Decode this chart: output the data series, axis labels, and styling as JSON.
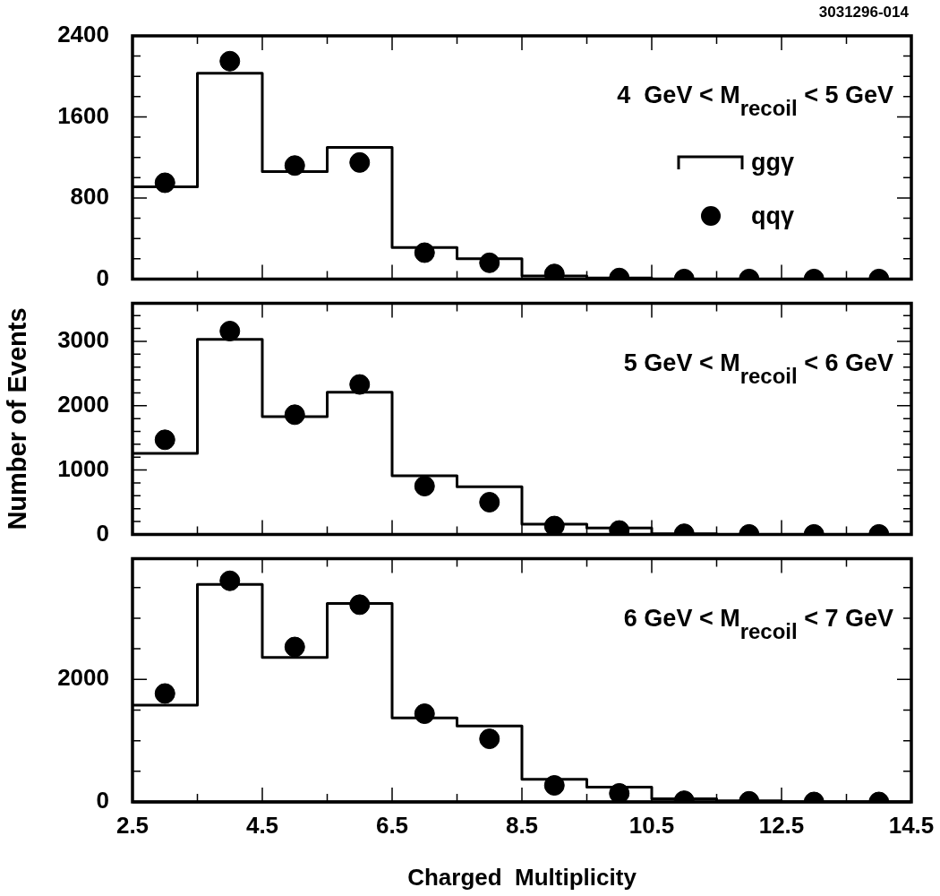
{
  "chart_data": [
    {
      "type": "histogram",
      "title": "4  GeV < M$_{recoil}$ < 5 GeV",
      "annotations": [
        "3031296-014"
      ],
      "legend": "right",
      "marker": "circle",
      "tick_labels": "y",
      "bins": [
        2.5,
        3.5,
        4.5,
        5.5,
        6.5,
        7.5,
        8.5,
        9.5,
        10.5,
        11.5,
        12.5,
        13.5,
        14.5
      ],
      "xlim": [
        2.5,
        14.5
      ],
      "xticks": [
        {
          "value": 2.5,
          "label": null
        },
        {
          "value": 3.5,
          "label": null
        },
        {
          "value": 4.5,
          "label": null
        },
        {
          "value": 5.5,
          "label": null
        },
        {
          "value": 6.5,
          "label": null
        },
        {
          "value": 7.5,
          "label": null
        },
        {
          "value": 8.5,
          "label": null
        },
        {
          "value": 9.5,
          "label": null
        },
        {
          "value": 10.5,
          "label": null
        },
        {
          "value": 11.5,
          "label": null
        },
        {
          "value": 12.5,
          "label": null
        },
        {
          "value": 13.5,
          "label": null
        },
        {
          "value": 14.5,
          "label": null
        }
      ],
      "ylim": [
        0,
        2400
      ],
      "yticks": [
        0,
        {
          "value": 200,
          "label": null
        },
        {
          "value": 400,
          "label": null
        },
        {
          "value": 600,
          "label": null
        },
        800,
        {
          "value": 1000,
          "label": null
        },
        {
          "value": 1200,
          "label": null
        },
        {
          "value": 1400,
          "label": null
        },
        1600,
        {
          "value": 1800,
          "label": null
        },
        {
          "value": 2000,
          "label": null
        },
        {
          "value": 2200,
          "label": null
        },
        2400
      ],
      "series": [
        {
          "name": "ggγ",
          "color": "#000000",
          "values": [
            910,
            2030,
            1060,
            1300,
            310,
            200,
            30,
            10,
            0,
            0,
            0,
            0
          ]
        },
        {
          "name": "qqγ",
          "type": "scatter",
          "color": "#000000",
          "x": [
            3,
            4,
            5,
            6,
            7,
            8,
            9,
            10,
            11,
            12,
            13,
            14
          ],
          "values": [
            950,
            2150,
            1120,
            1150,
            260,
            160,
            50,
            10,
            0,
            0,
            0,
            0
          ]
        }
      ]
    },
    {
      "type": "histogram",
      "title": "5 GeV < M$_{recoil}$ < 6 GeV",
      "ylabel": "Number of Events",
      "marker": "circle",
      "tick_labels": "y",
      "bins": [
        2.5,
        3.5,
        4.5,
        5.5,
        6.5,
        7.5,
        8.5,
        9.5,
        10.5,
        11.5,
        12.5,
        13.5,
        14.5
      ],
      "xlim": [
        2.5,
        14.5
      ],
      "xticks": [
        {
          "value": 2.5,
          "label": null
        },
        {
          "value": 3.5,
          "label": null
        },
        {
          "value": 4.5,
          "label": null
        },
        {
          "value": 5.5,
          "label": null
        },
        {
          "value": 6.5,
          "label": null
        },
        {
          "value": 7.5,
          "label": null
        },
        {
          "value": 8.5,
          "label": null
        },
        {
          "value": 9.5,
          "label": null
        },
        {
          "value": 10.5,
          "label": null
        },
        {
          "value": 11.5,
          "label": null
        },
        {
          "value": 12.5,
          "label": null
        },
        {
          "value": 13.5,
          "label": null
        },
        {
          "value": 14.5,
          "label": null
        }
      ],
      "ylim": [
        0,
        3590
      ],
      "yticks": [
        0,
        {
          "value": 200,
          "label": null
        },
        {
          "value": 400,
          "label": null
        },
        {
          "value": 600,
          "label": null
        },
        {
          "value": 800,
          "label": null
        },
        1000,
        {
          "value": 1200,
          "label": null
        },
        {
          "value": 1400,
          "label": null
        },
        {
          "value": 1600,
          "label": null
        },
        {
          "value": 1800,
          "label": null
        },
        2000,
        {
          "value": 2200,
          "label": null
        },
        {
          "value": 2400,
          "label": null
        },
        {
          "value": 2600,
          "label": null
        },
        {
          "value": 2800,
          "label": null
        },
        3000,
        {
          "value": 3200,
          "label": null
        },
        {
          "value": 3400,
          "label": null
        }
      ],
      "series": [
        {
          "color": "#000000",
          "values": [
            1260,
            3030,
            1830,
            2210,
            910,
            740,
            160,
            100,
            10,
            0,
            0,
            0
          ]
        },
        {
          "type": "scatter",
          "color": "#000000",
          "x": [
            3,
            4,
            5,
            6,
            7,
            8,
            9,
            10,
            11,
            12,
            13,
            14
          ],
          "values": [
            1470,
            3160,
            1860,
            2330,
            750,
            500,
            130,
            60,
            10,
            0,
            0,
            0
          ]
        }
      ]
    },
    {
      "type": "histogram",
      "title": "6 GeV < M$_{recoil}$ < 7 GeV",
      "xlabel": "Charged  Multiplicity",
      "marker": "circle",
      "bins": [
        2.5,
        3.5,
        4.5,
        5.5,
        6.5,
        7.5,
        8.5,
        9.5,
        10.5,
        11.5,
        12.5,
        13.5,
        14.5
      ],
      "xlim": [
        2.5,
        14.5
      ],
      "xticks": [
        2.5,
        {
          "value": 3.5,
          "label": null
        },
        4.5,
        {
          "value": 5.5,
          "label": null
        },
        6.5,
        {
          "value": 7.5,
          "label": null
        },
        8.5,
        {
          "value": 9.5,
          "label": null
        },
        10.5,
        {
          "value": 11.5,
          "label": null
        },
        12.5,
        {
          "value": 13.5,
          "label": null
        },
        14.5
      ],
      "ylim": [
        0,
        3970
      ],
      "yticks": [
        0,
        {
          "value": 500,
          "label": null
        },
        {
          "value": 1000,
          "label": null
        },
        {
          "value": 1500,
          "label": null
        },
        2000,
        {
          "value": 2500,
          "label": null
        },
        {
          "value": 3000,
          "label": null
        },
        {
          "value": 3500,
          "label": null
        }
      ],
      "series": [
        {
          "color": "#000000",
          "values": [
            1580,
            3550,
            2360,
            3240,
            1370,
            1240,
            370,
            240,
            50,
            20,
            0,
            0
          ]
        },
        {
          "type": "scatter",
          "color": "#000000",
          "x": [
            3,
            4,
            5,
            6,
            7,
            8,
            9,
            10,
            11,
            12,
            13,
            14
          ],
          "values": [
            1770,
            3610,
            2530,
            3220,
            1440,
            1030,
            270,
            140,
            20,
            10,
            0,
            0
          ]
        }
      ]
    }
  ]
}
